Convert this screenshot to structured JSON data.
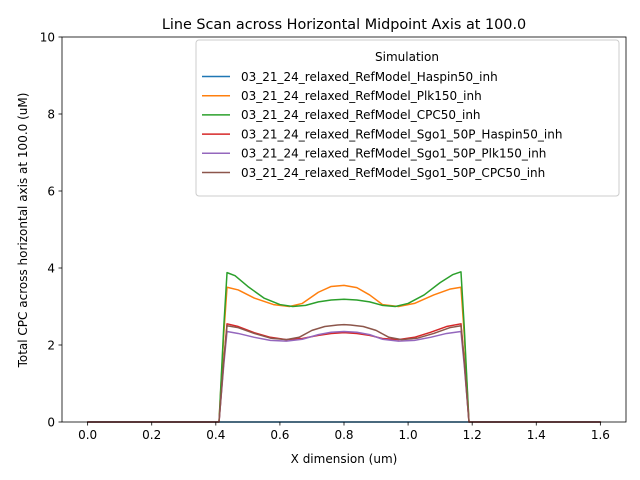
{
  "chart_data": {
    "type": "line",
    "title": "Line Scan across Horizontal Midpoint Axis at 100.0",
    "xlabel": "X dimension (um)",
    "ylabel": "Total CPC across horizontal axis at 100.0 (uM)",
    "xlim": [
      -0.08,
      1.68
    ],
    "ylim": [
      0,
      10
    ],
    "xticks": [
      0.0,
      0.2,
      0.4,
      0.6,
      0.8,
      1.0,
      1.2,
      1.4,
      1.6
    ],
    "xtick_labels": [
      "0.0",
      "0.2",
      "0.4",
      "0.6",
      "0.8",
      "1.0",
      "1.2",
      "1.4",
      "1.6"
    ],
    "yticks": [
      0,
      2,
      4,
      6,
      8,
      10
    ],
    "ytick_labels": [
      "0",
      "2",
      "4",
      "6",
      "8",
      "10"
    ],
    "grid": false,
    "legend": {
      "title": "Simulation",
      "placement": "top-right"
    },
    "series": [
      {
        "name": "03_21_24_relaxed_RefModel_Haspin50_inh",
        "color": "#1f77b4",
        "x": [
          0.0,
          0.2,
          0.4,
          0.6,
          0.8,
          1.0,
          1.2,
          1.4,
          1.6
        ],
        "y": [
          0,
          0,
          0,
          0,
          0,
          0,
          0,
          0,
          0
        ]
      },
      {
        "name": "03_21_24_relaxed_RefModel_Plk150_inh",
        "color": "#ff7f0e",
        "x": [
          0.0,
          0.41,
          0.425,
          0.435,
          0.47,
          0.52,
          0.58,
          0.63,
          0.67,
          0.72,
          0.76,
          0.8,
          0.84,
          0.88,
          0.92,
          0.97,
          1.02,
          1.08,
          1.13,
          1.165,
          1.175,
          1.19,
          1.6
        ],
        "y": [
          0,
          0,
          2.3,
          3.5,
          3.43,
          3.22,
          3.05,
          3.0,
          3.08,
          3.37,
          3.52,
          3.55,
          3.49,
          3.3,
          3.05,
          3.0,
          3.08,
          3.3,
          3.45,
          3.5,
          2.3,
          0,
          0
        ]
      },
      {
        "name": "03_21_24_relaxed_RefModel_CPC50_inh",
        "color": "#2ca02c",
        "x": [
          0.0,
          0.41,
          0.425,
          0.435,
          0.46,
          0.5,
          0.55,
          0.6,
          0.64,
          0.68,
          0.72,
          0.76,
          0.8,
          0.84,
          0.88,
          0.92,
          0.96,
          1.0,
          1.05,
          1.1,
          1.14,
          1.165,
          1.175,
          1.19,
          1.6
        ],
        "y": [
          0,
          0,
          2.5,
          3.88,
          3.8,
          3.52,
          3.22,
          3.05,
          3.0,
          3.03,
          3.12,
          3.17,
          3.19,
          3.17,
          3.12,
          3.03,
          3.0,
          3.08,
          3.3,
          3.62,
          3.83,
          3.9,
          2.5,
          0,
          0
        ]
      },
      {
        "name": "03_21_24_relaxed_RefModel_Sgo1_50P_Haspin50_inh",
        "color": "#d62728",
        "x": [
          0.0,
          0.41,
          0.425,
          0.435,
          0.47,
          0.52,
          0.57,
          0.62,
          0.67,
          0.72,
          0.76,
          0.8,
          0.84,
          0.88,
          0.92,
          0.97,
          1.02,
          1.07,
          1.12,
          1.165,
          1.175,
          1.19,
          1.6
        ],
        "y": [
          0,
          0,
          1.6,
          2.55,
          2.48,
          2.32,
          2.2,
          2.14,
          2.17,
          2.25,
          2.3,
          2.32,
          2.3,
          2.25,
          2.17,
          2.14,
          2.2,
          2.33,
          2.48,
          2.55,
          1.6,
          0,
          0
        ]
      },
      {
        "name": "03_21_24_relaxed_RefModel_Sgo1_50P_Plk150_inh",
        "color": "#9467bd",
        "x": [
          0.0,
          0.41,
          0.425,
          0.435,
          0.47,
          0.52,
          0.57,
          0.62,
          0.67,
          0.72,
          0.76,
          0.8,
          0.84,
          0.88,
          0.92,
          0.97,
          1.02,
          1.07,
          1.12,
          1.165,
          1.175,
          1.19,
          1.6
        ],
        "y": [
          0,
          0,
          1.5,
          2.35,
          2.3,
          2.2,
          2.12,
          2.1,
          2.15,
          2.27,
          2.33,
          2.35,
          2.33,
          2.27,
          2.15,
          2.1,
          2.12,
          2.2,
          2.3,
          2.35,
          1.5,
          0,
          0
        ]
      },
      {
        "name": "03_21_24_relaxed_RefModel_Sgo1_50P_CPC50_inh",
        "color": "#8c564b",
        "x": [
          0.0,
          0.41,
          0.425,
          0.435,
          0.47,
          0.52,
          0.57,
          0.62,
          0.66,
          0.7,
          0.74,
          0.78,
          0.8,
          0.82,
          0.86,
          0.9,
          0.94,
          0.98,
          1.03,
          1.08,
          1.13,
          1.165,
          1.175,
          1.19,
          1.6
        ],
        "y": [
          0,
          0,
          1.6,
          2.5,
          2.45,
          2.3,
          2.18,
          2.14,
          2.2,
          2.38,
          2.48,
          2.52,
          2.53,
          2.52,
          2.48,
          2.38,
          2.2,
          2.14,
          2.18,
          2.3,
          2.45,
          2.5,
          1.6,
          0,
          0
        ]
      }
    ]
  }
}
